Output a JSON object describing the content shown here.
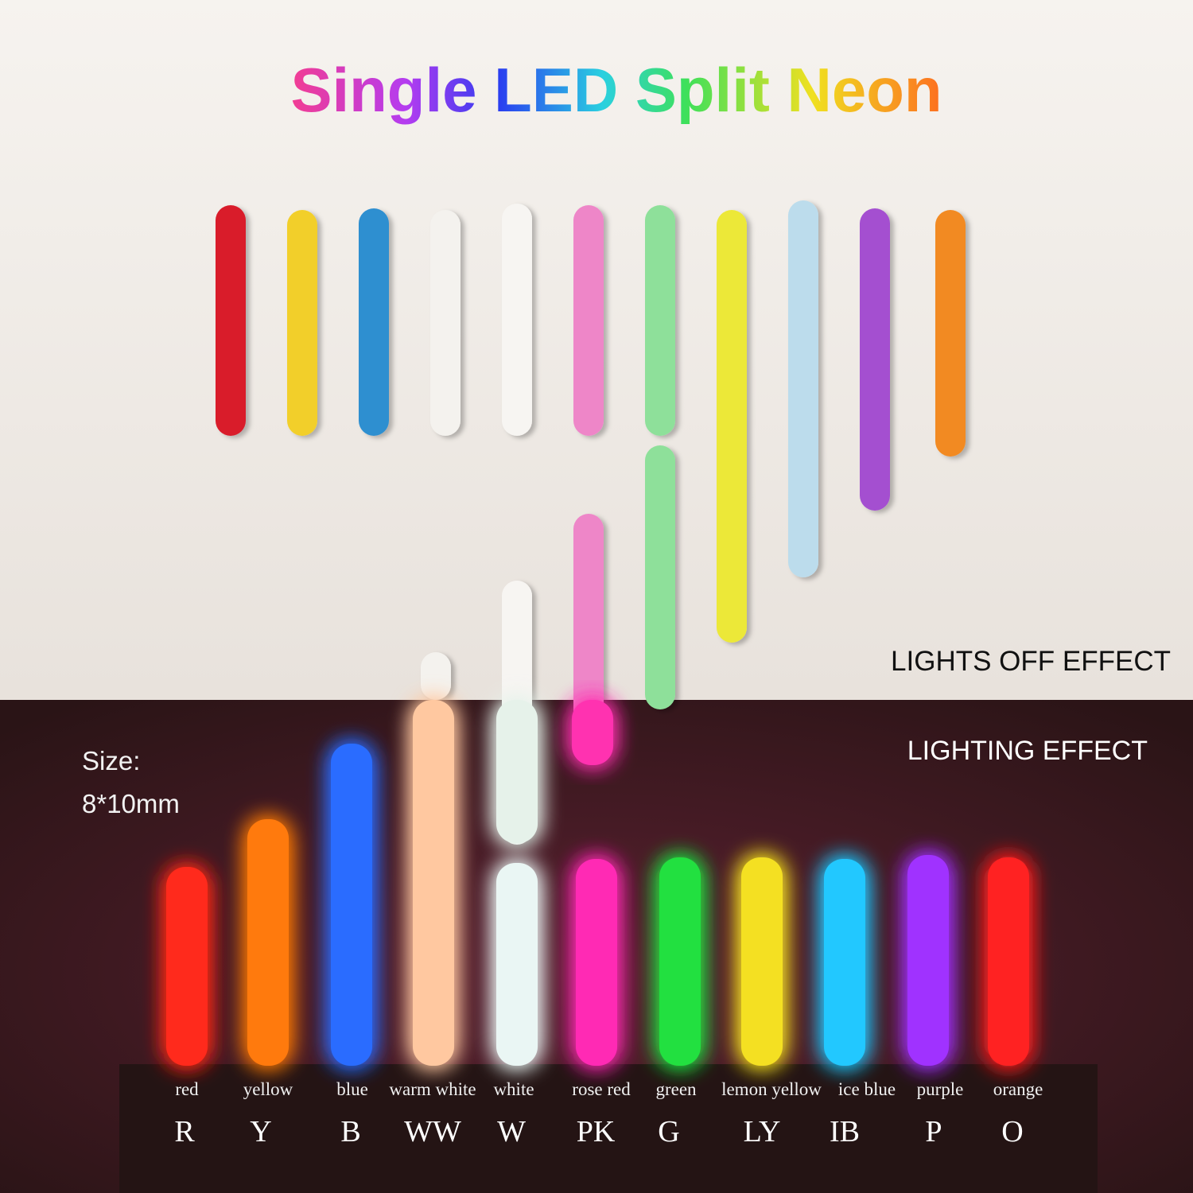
{
  "title": "Single LED Split Neon",
  "lights_off_label": "LIGHTS OFF EFFECT",
  "lighting_label": "LIGHTING EFFECT",
  "size": {
    "label": "Size:",
    "value": "8*10mm"
  },
  "colors": [
    {
      "name": "red",
      "code": "R"
    },
    {
      "name": "yellow",
      "code": "Y"
    },
    {
      "name": "blue",
      "code": "B"
    },
    {
      "name": "warm white",
      "code": "WW"
    },
    {
      "name": "white",
      "code": "W"
    },
    {
      "name": "rose red",
      "code": "PK"
    },
    {
      "name": "green",
      "code": "G"
    },
    {
      "name": "lemon yellow",
      "code": "LY"
    },
    {
      "name": "ice blue",
      "code": "IB"
    },
    {
      "name": "purple",
      "code": "P"
    },
    {
      "name": "orange",
      "code": "O"
    }
  ]
}
